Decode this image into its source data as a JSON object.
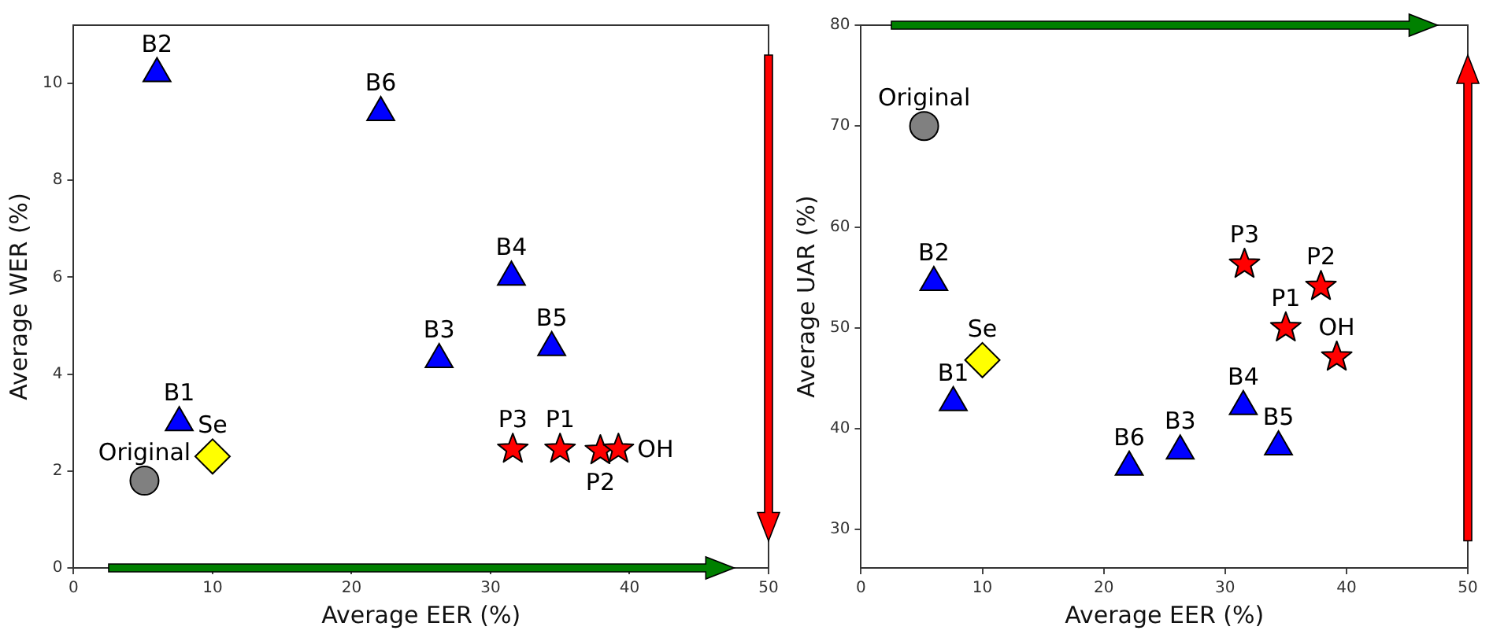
{
  "chart_data": [
    {
      "type": "scatter",
      "xlabel": "Average EER (%)",
      "ylabel": "Average WER (%)",
      "xlim": [
        0,
        50
      ],
      "ylim": [
        0,
        11.2
      ],
      "xticks": [
        0,
        10,
        20,
        30,
        40,
        50
      ],
      "yticks": [
        0,
        2,
        4,
        6,
        8,
        10
      ],
      "grid": false,
      "series": [
        {
          "name": "Original",
          "color": "#808080",
          "marker": "circle",
          "x": [
            5.1
          ],
          "values": [
            1.8
          ]
        },
        {
          "name": "Se",
          "color": "#ffff00",
          "marker": "diamond",
          "x": [
            10
          ],
          "values": [
            2.3
          ]
        },
        {
          "name": "B1",
          "color": "#0000ff",
          "marker": "triangle",
          "x": [
            7.6
          ],
          "values": [
            3.0
          ]
        },
        {
          "name": "B2",
          "color": "#0000ff",
          "marker": "triangle",
          "x": [
            6.0
          ],
          "values": [
            10.2
          ]
        },
        {
          "name": "B3",
          "color": "#0000ff",
          "marker": "triangle",
          "x": [
            26.3
          ],
          "values": [
            4.3
          ]
        },
        {
          "name": "B4",
          "color": "#0000ff",
          "marker": "triangle",
          "x": [
            31.5
          ],
          "values": [
            6.0
          ]
        },
        {
          "name": "B5",
          "color": "#0000ff",
          "marker": "triangle",
          "x": [
            34.4
          ],
          "values": [
            4.55
          ]
        },
        {
          "name": "B6",
          "color": "#0000ff",
          "marker": "triangle",
          "x": [
            22.1
          ],
          "values": [
            9.4
          ]
        },
        {
          "name": "P3",
          "color": "#ff0000",
          "marker": "star",
          "x": [
            31.6
          ],
          "values": [
            2.45
          ]
        },
        {
          "name": "P1",
          "color": "#ff0000",
          "marker": "star",
          "x": [
            35.0
          ],
          "values": [
            2.45
          ]
        },
        {
          "name": "P2",
          "color": "#ff0000",
          "marker": "star",
          "x": [
            37.9
          ],
          "values": [
            2.42
          ]
        },
        {
          "name": "OH",
          "color": "#ff0000",
          "marker": "star",
          "x": [
            39.2
          ],
          "values": [
            2.45
          ]
        }
      ]
    },
    {
      "type": "scatter",
      "xlabel": "Average EER (%)",
      "ylabel": "Average UAR (%)",
      "xlim": [
        0,
        50
      ],
      "ylim": [
        26.2,
        80
      ],
      "xticks": [
        0,
        10,
        20,
        30,
        40,
        50
      ],
      "yticks": [
        30,
        40,
        50,
        60,
        70,
        80
      ],
      "grid": false,
      "series": [
        {
          "name": "Original",
          "color": "#808080",
          "marker": "circle",
          "x": [
            5.2
          ],
          "values": [
            70
          ]
        },
        {
          "name": "Se",
          "color": "#ffff00",
          "marker": "diamond",
          "x": [
            10
          ],
          "values": [
            46.8
          ]
        },
        {
          "name": "B1",
          "color": "#0000ff",
          "marker": "triangle",
          "x": [
            7.6
          ],
          "values": [
            42.6
          ]
        },
        {
          "name": "B2",
          "color": "#0000ff",
          "marker": "triangle",
          "x": [
            6.0
          ],
          "values": [
            54.5
          ]
        },
        {
          "name": "B3",
          "color": "#0000ff",
          "marker": "triangle",
          "x": [
            26.3
          ],
          "values": [
            37.8
          ]
        },
        {
          "name": "B4",
          "color": "#0000ff",
          "marker": "triangle",
          "x": [
            31.5
          ],
          "values": [
            42.2
          ]
        },
        {
          "name": "B5",
          "color": "#0000ff",
          "marker": "triangle",
          "x": [
            34.4
          ],
          "values": [
            38.2
          ]
        },
        {
          "name": "B6",
          "color": "#0000ff",
          "marker": "triangle",
          "x": [
            22.1
          ],
          "values": [
            36.2
          ]
        },
        {
          "name": "P3",
          "color": "#ff0000",
          "marker": "star",
          "x": [
            31.6
          ],
          "values": [
            56.3
          ]
        },
        {
          "name": "P1",
          "color": "#ff0000",
          "marker": "star",
          "x": [
            35.0
          ],
          "values": [
            50
          ]
        },
        {
          "name": "P2",
          "color": "#ff0000",
          "marker": "star",
          "x": [
            37.9
          ],
          "values": [
            54.1
          ]
        },
        {
          "name": "OH",
          "color": "#ff0000",
          "marker": "star",
          "x": [
            39.2
          ],
          "values": [
            47.1
          ]
        }
      ]
    }
  ]
}
